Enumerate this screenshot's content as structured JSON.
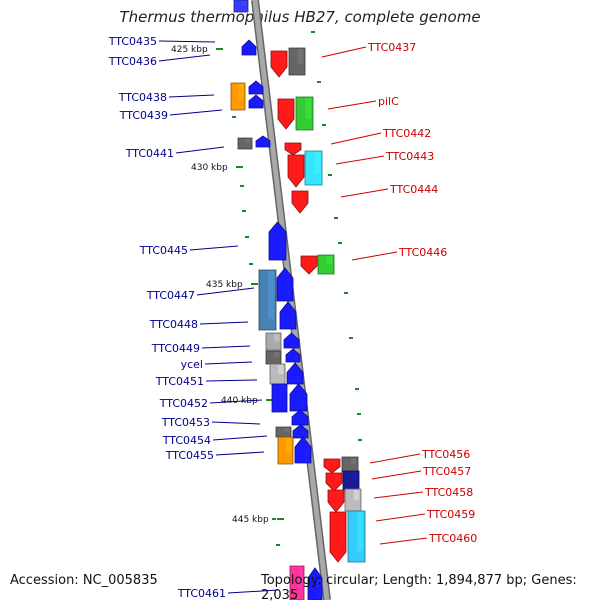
{
  "title": "Thermus thermophilus HB27, complete genome",
  "accession": "Accession: NC_005835",
  "topology": "Topology: circular; Length: 1,894,877 bp; Genes: 2,035",
  "scale_marks": [
    "425 kbp",
    "430 kbp",
    "435 kbp",
    "440 kbp",
    "445 kbp"
  ],
  "left_genes": [
    "TTC0435",
    "TTC0436",
    "TTC0438",
    "TTC0439",
    "TTC0441",
    "TTC0445",
    "TTC0447",
    "TTC0448",
    "TTC0449",
    "ycel",
    "TTC0451",
    "TTC0452",
    "TTC0453",
    "TTC0454",
    "TTC0455",
    "TTC0461"
  ],
  "right_genes": [
    "TTC0437",
    "pilC",
    "TTC0442",
    "TTC0443",
    "TTC0444",
    "TTC0446",
    "TTC0456",
    "TTC0457",
    "TTC0458",
    "TTC0459",
    "TTC0460"
  ],
  "colors": {
    "forward_strand": "#0000ff",
    "reverse_strand": "#ff0000",
    "left_label": "#00008b",
    "right_label": "#cc0000",
    "backbone": "#8a8a8a",
    "tick": "#1a8a1a"
  }
}
